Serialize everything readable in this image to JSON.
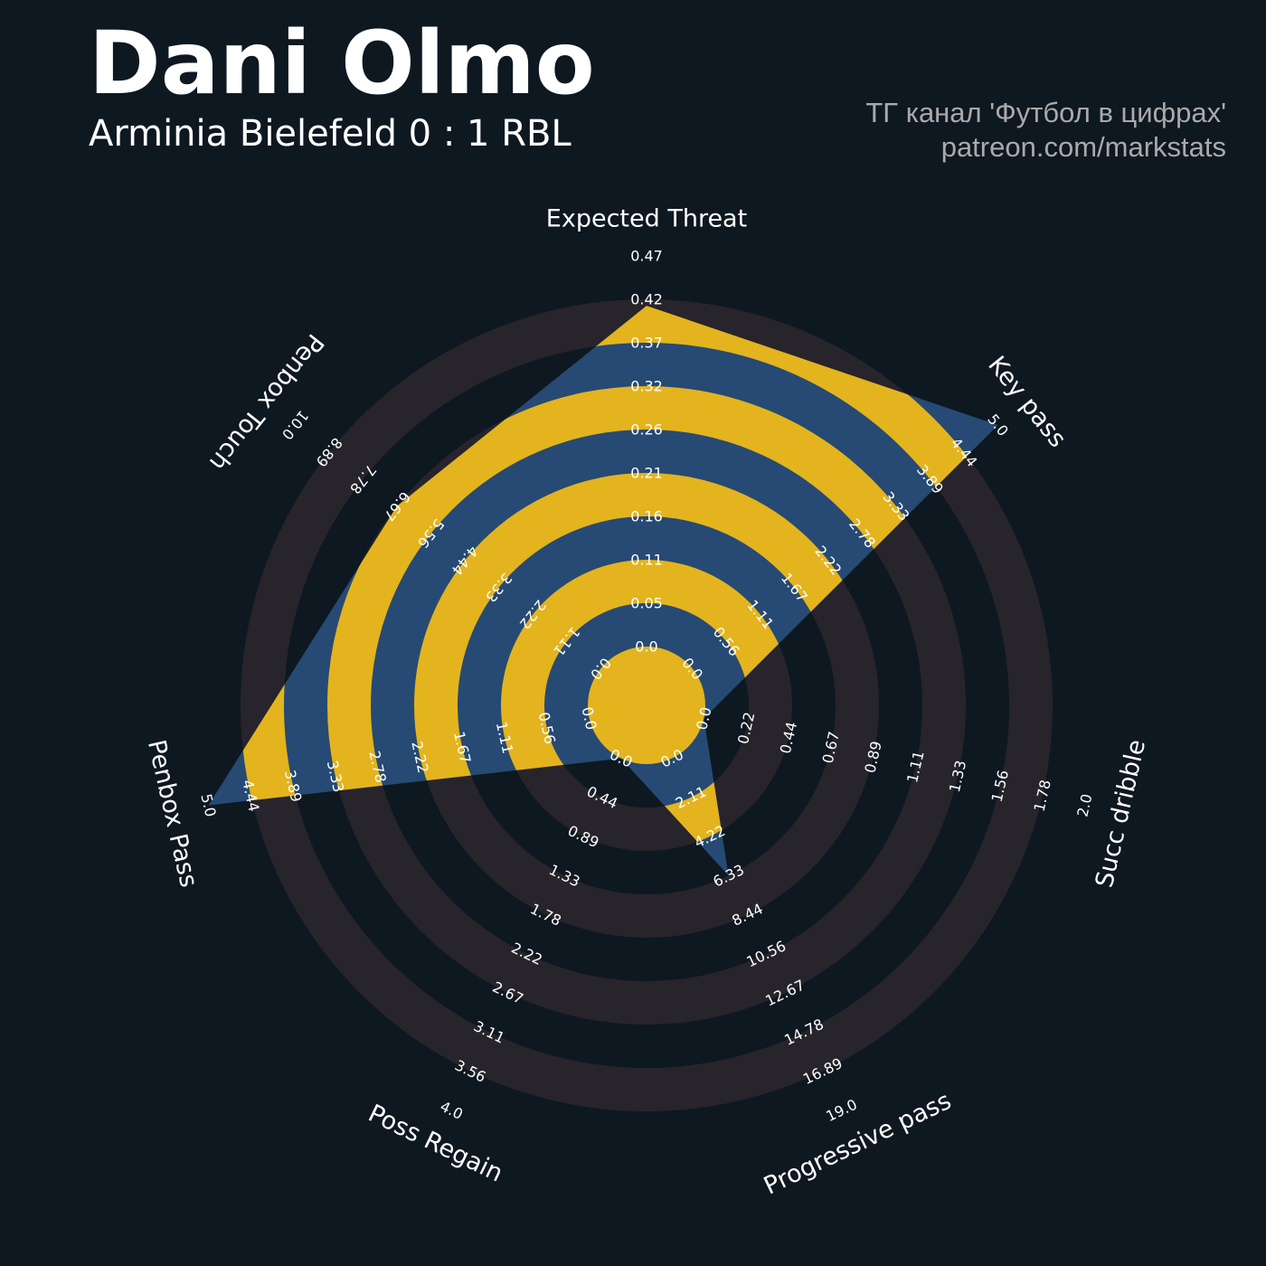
{
  "header": {
    "title": "Dani Olmo",
    "subtitle": "Arminia Bielefeld 0 : 1 RBL",
    "credit_line1": "ТГ канал 'Футбол в цифрах'",
    "credit_line2": "patreon.com/markstats"
  },
  "colors": {
    "background": "#0e1821",
    "ring": "#28242b",
    "player_fill": "#264a73",
    "highlight": "#e3b41e",
    "text": "#ffffff",
    "credit_text": "#aaaaaa"
  },
  "chart_data": {
    "type": "radar",
    "title": "Dani Olmo",
    "subtitle": "Arminia Bielefeld 0 : 1 RBL",
    "axes": [
      {
        "name": "Expected Threat",
        "min": 0.0,
        "max": 0.47,
        "ticks": [
          "0.0",
          "0.05",
          "0.11",
          "0.16",
          "0.21",
          "0.26",
          "0.32",
          "0.37",
          "0.42",
          "0.47"
        ],
        "value": 0.41
      },
      {
        "name": "Key pass",
        "min": 0.0,
        "max": 5.0,
        "ticks": [
          "0.0",
          "0.56",
          "1.11",
          "1.67",
          "2.22",
          "2.78",
          "3.33",
          "3.89",
          "4.44",
          "5.0"
        ],
        "value": 5.0
      },
      {
        "name": "Succ dribble",
        "min": 0.0,
        "max": 2.0,
        "ticks": [
          "0.0",
          "0.22",
          "0.44",
          "0.67",
          "0.89",
          "1.11",
          "1.33",
          "1.56",
          "1.78",
          "2.0"
        ],
        "value": 0.0
      },
      {
        "name": "Progressive pass",
        "min": 0.0,
        "max": 19.0,
        "ticks": [
          "0.0",
          "2.11",
          "4.22",
          "6.33",
          "8.44",
          "10.56",
          "12.67",
          "14.78",
          "16.89",
          "19.0"
        ],
        "value": 6.33
      },
      {
        "name": "Poss Regain",
        "min": 0.0,
        "max": 4.0,
        "ticks": [
          "0.0",
          "0.44",
          "0.89",
          "1.33",
          "1.78",
          "2.22",
          "2.67",
          "3.11",
          "3.56",
          "4.0"
        ],
        "value": 0.0
      },
      {
        "name": "Penbox Pass",
        "min": 0.0,
        "max": 5.0,
        "ticks": [
          "0.0",
          "0.56",
          "1.11",
          "1.67",
          "2.22",
          "2.78",
          "3.33",
          "3.89",
          "4.44",
          "5.0"
        ],
        "value": 5.0
      },
      {
        "name": "Penbox Touch",
        "min": 0.0,
        "max": 10.0,
        "ticks": [
          "0.0",
          "1.11",
          "2.22",
          "3.33",
          "4.44",
          "5.56",
          "6.67",
          "7.78",
          "8.89",
          "10.0"
        ],
        "value": 6.67
      }
    ]
  }
}
